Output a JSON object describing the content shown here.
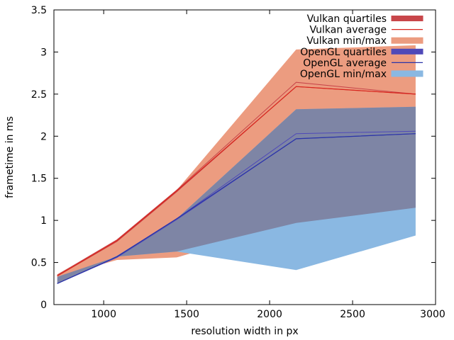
{
  "chart_data": {
    "type": "area",
    "title": "",
    "xlabel": "resolution width in px",
    "ylabel": "frametime in ms",
    "xlim": [
      700,
      3000
    ],
    "ylim": [
      0,
      3.5
    ],
    "x_ticks": [
      1000,
      1500,
      2000,
      2500,
      3000
    ],
    "y_ticks": [
      0,
      0.5,
      1,
      1.5,
      2,
      2.5,
      3,
      3.5
    ],
    "x_tick_labels": [
      "1000",
      "1500",
      "2000",
      "2500",
      "3000"
    ],
    "y_tick_labels": [
      "0",
      "0.5",
      "1",
      "1.5",
      "2",
      "2.5",
      "3",
      "3.5"
    ],
    "grid": false,
    "legend_position": "top-right",
    "x": [
      720,
      1080,
      1440,
      2160,
      2880
    ],
    "series": [
      {
        "key": "vulkan_minmax",
        "kind": "band",
        "name": "Vulkan min/max",
        "color": "#ec9c80",
        "lower": [
          0.33,
          0.53,
          0.56,
          0.97,
          1.15
        ],
        "upper": [
          0.36,
          0.76,
          1.36,
          3.03,
          3.08
        ]
      },
      {
        "key": "opengl_minmax",
        "kind": "band",
        "name": "OpenGL min/max",
        "color": "#8ab8e2",
        "lower": [
          0.25,
          0.57,
          0.63,
          0.41,
          0.82
        ],
        "upper": [
          0.25,
          0.58,
          1.02,
          2.32,
          2.35
        ]
      },
      {
        "key": "vulkan_quartiles",
        "kind": "band",
        "name": "Vulkan quartiles",
        "color": "#c8464a",
        "lower": [
          0.34,
          0.75,
          1.34,
          2.59,
          2.5
        ],
        "upper": [
          0.35,
          0.77,
          1.36,
          2.64,
          2.5
        ]
      },
      {
        "key": "opengl_quartiles",
        "kind": "band",
        "name": "OpenGL quartiles",
        "color": "#4f49b8",
        "lower": [
          0.25,
          0.56,
          1.01,
          1.97,
          2.03
        ],
        "upper": [
          0.25,
          0.57,
          1.02,
          2.03,
          2.06
        ]
      },
      {
        "key": "vulkan_average",
        "kind": "line",
        "name": "Vulkan average",
        "color": "#d8241c",
        "values": [
          0.34,
          0.76,
          1.35,
          2.59,
          2.5
        ]
      },
      {
        "key": "opengl_average",
        "kind": "line",
        "name": "OpenGL average",
        "color": "#2a34a8",
        "values": [
          0.25,
          0.57,
          1.02,
          1.97,
          2.03
        ]
      }
    ],
    "overlap_color": "#7e85a5",
    "legend_order": [
      "vulkan_quartiles",
      "vulkan_average",
      "vulkan_minmax",
      "opengl_quartiles",
      "opengl_average",
      "opengl_minmax"
    ]
  }
}
